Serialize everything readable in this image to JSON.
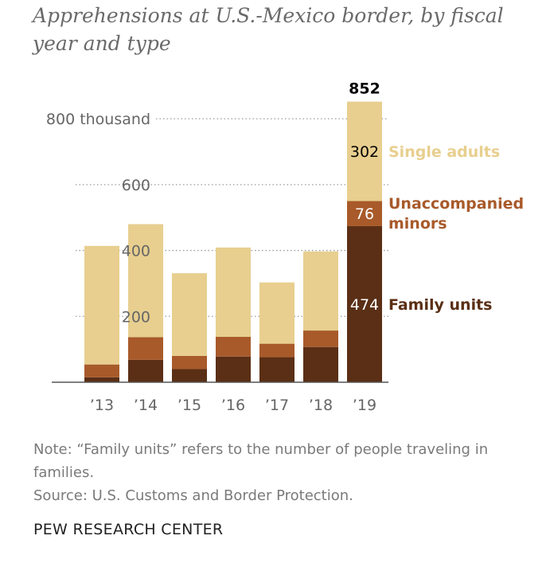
{
  "title": "Apprehensions at U.S.-Mexico border, by fiscal year and type",
  "notes": {
    "note": "Note: “Family units” refers to the number of people traveling in families.",
    "source": "Source: U.S. Customs and Border Protection."
  },
  "credit": "PEW RESEARCH CENTER",
  "chart_data": {
    "type": "bar",
    "stacked": true,
    "categories": [
      "’13",
      "’14",
      "’15",
      "’16",
      "’17",
      "’18",
      "’19"
    ],
    "series": [
      {
        "name": "Family units",
        "color": "#5a2f15",
        "values": [
          15,
          68,
          40,
          78,
          76,
          107,
          474
        ]
      },
      {
        "name": "Unaccompanied minors",
        "color": "#a85a2a",
        "values": [
          39,
          69,
          40,
          60,
          41,
          50,
          76
        ]
      },
      {
        "name": "Single adults",
        "color": "#e8cf8f",
        "values": [
          360,
          343,
          251,
          271,
          186,
          240,
          302
        ]
      }
    ],
    "ylim": [
      0,
      852
    ],
    "yticks": [
      200,
      400,
      600,
      800
    ],
    "ytick_labels": [
      "200",
      "400",
      "600",
      "800 thousand"
    ],
    "grid": "dotted",
    "data_labels": {
      "category": "’19",
      "segments": [
        "474",
        "76",
        "302"
      ],
      "total": "852"
    },
    "legend_placement": "right of last bar"
  }
}
